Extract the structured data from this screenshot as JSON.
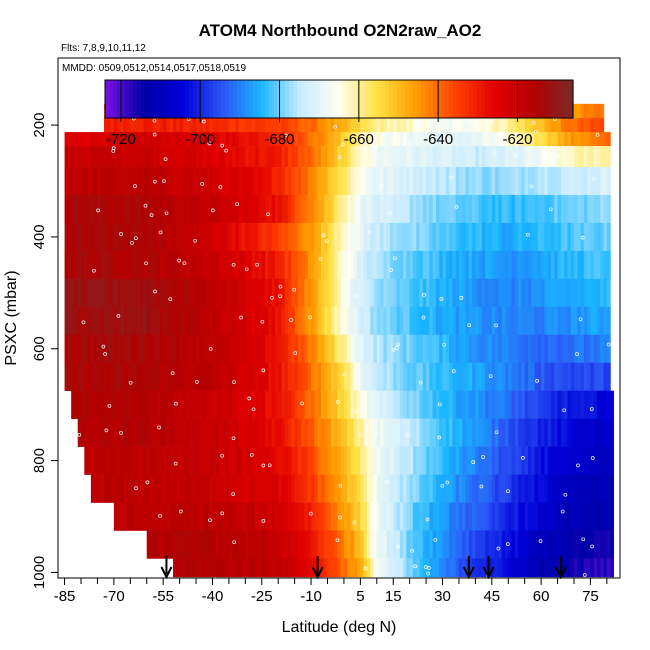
{
  "chart_data": {
    "type": "heatmap",
    "title": "ATOM4 Northbound O2N2raw_AO2",
    "notes": [
      "Flts: 7,8,9,10,11,12",
      "MMDD: 0509,0512,0514,0517,0518,0519"
    ],
    "xlabel": "Latitude (deg N)",
    "ylabel": "PSXC (mbar)",
    "xlim": [
      -87,
      84
    ],
    "ylim": [
      1010,
      80
    ],
    "y_reversed": true,
    "x_ticks": [
      -85,
      -70,
      -55,
      -40,
      -25,
      -10,
      5,
      15,
      30,
      45,
      60,
      75
    ],
    "x_minor_ticks": [
      -80,
      -75,
      -65,
      -60,
      -50,
      -45,
      -35,
      -30,
      -20,
      -15,
      -5,
      0,
      10,
      20,
      25,
      35,
      40,
      50,
      55,
      65,
      70,
      80
    ],
    "y_ticks": [
      200,
      400,
      600,
      800,
      1000
    ],
    "colorbar": {
      "range": [
        -724,
        -606
      ],
      "ticks": [
        -720,
        -700,
        -680,
        -660,
        -640,
        -620
      ],
      "colors": [
        "#7a10e6",
        "#0000a8",
        "#0000d8",
        "#2a55f5",
        "#1ab6ff",
        "#c9ecff",
        "#fffff0",
        "#ffe040",
        "#ff9a00",
        "#ff4000",
        "#e00000",
        "#b20000",
        "#7a2b2b"
      ]
    },
    "profile_arrows_lat": [
      -54,
      -8,
      38,
      44,
      66
    ],
    "pressure_levels": [
      175,
      200,
      225,
      250,
      300,
      350,
      400,
      450,
      500,
      550,
      600,
      650,
      700,
      750,
      800,
      850,
      900,
      950,
      1000
    ],
    "lat_starts": [
      -73,
      -73,
      -85,
      -85,
      -85,
      -85,
      -85,
      -85,
      -85,
      -85,
      -85,
      -85,
      -83,
      -81,
      -79,
      -77,
      -70,
      -60,
      -52
    ],
    "lat_ends": [
      79,
      79,
      81,
      81,
      81,
      81,
      81,
      81,
      81,
      81,
      81,
      81,
      82,
      82,
      82,
      82,
      82,
      82,
      82
    ],
    "control_lats": [
      -85,
      -60,
      -40,
      -20,
      -10,
      0,
      5,
      10,
      20,
      30,
      40,
      50,
      60,
      70,
      82
    ],
    "control_values": [
      [
        -640,
        -640,
        -640,
        -640,
        -640,
        -645,
        -648,
        -652,
        -658,
        -665,
        -662,
        -660,
        -655,
        -645,
        -640
      ],
      [
        -630,
        -630,
        -632,
        -635,
        -640,
        -650,
        -655,
        -660,
        -663,
        -668,
        -665,
        -660,
        -650,
        -640,
        -635
      ],
      [
        -625,
        -622,
        -625,
        -630,
        -640,
        -652,
        -660,
        -665,
        -668,
        -670,
        -670,
        -665,
        -655,
        -645,
        -640
      ],
      [
        -620,
        -620,
        -625,
        -630,
        -640,
        -655,
        -662,
        -668,
        -670,
        -672,
        -674,
        -672,
        -668,
        -662,
        -660
      ],
      [
        -618,
        -618,
        -622,
        -630,
        -642,
        -657,
        -665,
        -670,
        -672,
        -675,
        -678,
        -678,
        -675,
        -674,
        -672
      ],
      [
        -614,
        -615,
        -620,
        -628,
        -642,
        -660,
        -668,
        -673,
        -676,
        -680,
        -682,
        -684,
        -682,
        -680,
        -678
      ],
      [
        -614,
        -615,
        -622,
        -635,
        -645,
        -662,
        -670,
        -675,
        -678,
        -682,
        -684,
        -686,
        -684,
        -682,
        -680
      ],
      [
        -614,
        -615,
        -620,
        -630,
        -645,
        -664,
        -672,
        -677,
        -680,
        -684,
        -686,
        -688,
        -686,
        -684,
        -682
      ],
      [
        -612,
        -612,
        -618,
        -628,
        -645,
        -665,
        -672,
        -678,
        -682,
        -685,
        -688,
        -690,
        -688,
        -686,
        -684
      ],
      [
        -612,
        -612,
        -618,
        -628,
        -645,
        -665,
        -672,
        -678,
        -682,
        -686,
        -688,
        -690,
        -690,
        -688,
        -686
      ],
      [
        -614,
        -614,
        -618,
        -628,
        -642,
        -660,
        -670,
        -676,
        -680,
        -684,
        -688,
        -690,
        -692,
        -692,
        -690
      ],
      [
        -615,
        -615,
        -618,
        -628,
        -640,
        -655,
        -668,
        -675,
        -680,
        -684,
        -686,
        -690,
        -694,
        -696,
        -696
      ],
      [
        -616,
        -616,
        -620,
        -628,
        -640,
        -655,
        -665,
        -672,
        -678,
        -684,
        -688,
        -692,
        -698,
        -702,
        -704
      ],
      [
        -616,
        -616,
        -620,
        -628,
        -638,
        -652,
        -660,
        -668,
        -675,
        -682,
        -688,
        -694,
        -700,
        -705,
        -708
      ],
      [
        -618,
        -618,
        -620,
        -626,
        -636,
        -650,
        -658,
        -668,
        -676,
        -684,
        -690,
        -696,
        -702,
        -708,
        -710
      ],
      [
        -618,
        -618,
        -620,
        -625,
        -634,
        -648,
        -656,
        -668,
        -678,
        -686,
        -692,
        -698,
        -704,
        -710,
        -712
      ],
      [
        -618,
        -618,
        -618,
        -622,
        -630,
        -645,
        -654,
        -668,
        -680,
        -688,
        -694,
        -700,
        -706,
        -712,
        -714
      ],
      [
        -616,
        -616,
        -616,
        -620,
        -628,
        -642,
        -650,
        -668,
        -680,
        -688,
        -696,
        -702,
        -710,
        -714,
        -716
      ],
      [
        -616,
        -616,
        -616,
        -618,
        -626,
        -640,
        -648,
        -666,
        -680,
        -690,
        -698,
        -704,
        -712,
        -716,
        -718
      ]
    ]
  }
}
